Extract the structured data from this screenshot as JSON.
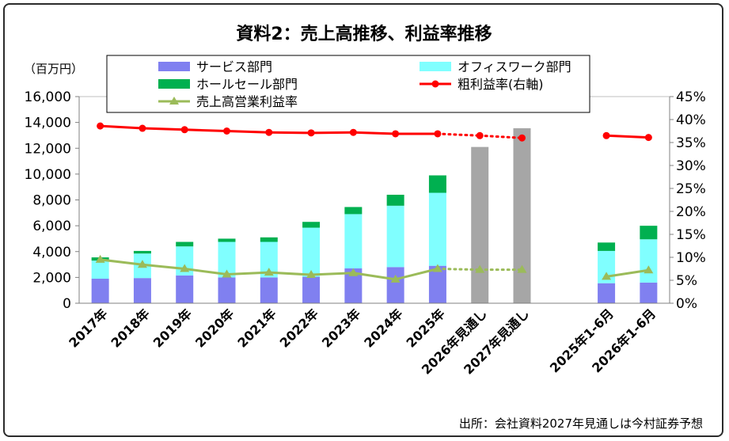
{
  "chart_data": {
    "type": "bar",
    "title": "資料2：売上高推移、利益率推移",
    "y_unit_label": "（百万円）",
    "source_note": "出所：会社資料2027年見通しは今村証券予想",
    "categories": [
      "2017年",
      "2018年",
      "2019年",
      "2020年",
      "2021年",
      "2022年",
      "2023年",
      "2024年",
      "2025年",
      "2026年見通し",
      "2027年見通し",
      "",
      "2025年1-6月",
      "2026年1-6月"
    ],
    "y_left": {
      "min": 0,
      "max": 16000,
      "step": 2000,
      "ticks": [
        "0",
        "2,000",
        "4,000",
        "6,000",
        "8,000",
        "10,000",
        "12,000",
        "14,000",
        "16,000"
      ]
    },
    "y_right": {
      "min": 0,
      "max": 45,
      "step": 5,
      "ticks": [
        "0%",
        "5%",
        "10%",
        "15%",
        "20%",
        "25%",
        "30%",
        "35%",
        "40%",
        "45%"
      ]
    },
    "grid": false,
    "legend_position": "top",
    "stacked_series": [
      {
        "name": "サービス部門",
        "color": "#8080f0",
        "values": [
          1900,
          1950,
          2150,
          2000,
          2000,
          2050,
          2700,
          2800,
          2900,
          null,
          null,
          null,
          1550,
          1600
        ]
      },
      {
        "name": "オフィスワーク部門",
        "color": "#80ffff",
        "values": [
          1400,
          1900,
          2250,
          2750,
          2750,
          3800,
          4200,
          4750,
          5650,
          null,
          null,
          null,
          2500,
          3350
        ]
      },
      {
        "name": "ホールセール部門",
        "color": "#00b050",
        "values": [
          250,
          200,
          350,
          250,
          350,
          450,
          550,
          850,
          1350,
          null,
          null,
          null,
          650,
          1050
        ]
      }
    ],
    "total_series": {
      "name": "",
      "color": "#a6a6a6",
      "values": [
        null,
        null,
        null,
        null,
        null,
        null,
        null,
        null,
        null,
        12100,
        13550,
        null,
        null,
        null
      ]
    },
    "line_series": [
      {
        "name": "粗利益率(右軸)",
        "color": "#ff0000",
        "marker": "circle",
        "axis": "right",
        "values": [
          38.6,
          38.1,
          37.8,
          37.5,
          37.2,
          37.1,
          37.2,
          36.9,
          36.9,
          36.5,
          36.0,
          null,
          36.5,
          36.1
        ],
        "projection_from": 8
      },
      {
        "name": "売上高営業利益率",
        "color": "#9bbb59",
        "marker": "triangle",
        "axis": "right",
        "values": [
          9.5,
          8.4,
          7.5,
          6.3,
          6.7,
          6.2,
          6.6,
          5.2,
          7.5,
          7.3,
          7.3,
          null,
          5.8,
          7.2
        ],
        "projection_from": 8
      }
    ]
  }
}
